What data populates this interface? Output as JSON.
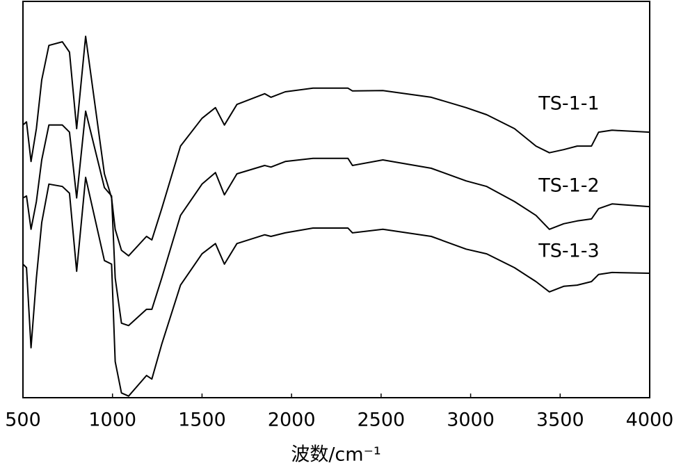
{
  "chart_data": {
    "type": "line",
    "x_label": "波数/cm⁻¹",
    "x": [
      500,
      520,
      545,
      575,
      605,
      645,
      720,
      760,
      800,
      850,
      955,
      995,
      1015,
      1050,
      1090,
      1190,
      1220,
      1275,
      1380,
      1500,
      1575,
      1625,
      1695,
      1850,
      1885,
      1965,
      2120,
      2315,
      2340,
      2510,
      2780,
      2975,
      3090,
      3245,
      3365,
      3440,
      3520,
      3595,
      3675,
      3715,
      3790,
      4000
    ],
    "series": [
      {
        "name": "TS-1-1",
        "color": "#000000",
        "values": [
          68.8,
          69.6,
          59.6,
          67.9,
          80.2,
          88.9,
          89.8,
          87.2,
          67.9,
          91.2,
          56.5,
          50.4,
          42.5,
          37.2,
          35.8,
          40.7,
          39.8,
          47.7,
          63.5,
          70.5,
          73.2,
          68.8,
          74.0,
          76.7,
          75.8,
          77.2,
          78.1,
          78.1,
          77.4,
          77.5,
          75.8,
          73.2,
          71.4,
          67.9,
          63.5,
          61.8,
          62.6,
          63.5,
          63.5,
          67.0,
          67.5,
          67.0
        ]
      },
      {
        "name": "TS-1-2",
        "color": "#000000",
        "values": [
          50.4,
          50.9,
          42.5,
          49.5,
          60.0,
          68.8,
          68.8,
          67.0,
          50.4,
          72.3,
          53.0,
          50.9,
          30.2,
          18.8,
          18.2,
          22.3,
          22.3,
          30.2,
          46.0,
          53.9,
          56.8,
          51.2,
          56.5,
          58.6,
          58.2,
          59.6,
          60.4,
          60.4,
          58.6,
          60.0,
          57.9,
          54.7,
          53.3,
          49.5,
          46.0,
          42.5,
          43.9,
          44.6,
          45.1,
          47.7,
          48.9,
          48.2
        ]
      },
      {
        "name": "TS-1-3",
        "color": "#000000",
        "values": [
          33.7,
          32.8,
          12.6,
          30.2,
          44.2,
          53.9,
          53.3,
          51.6,
          31.9,
          55.6,
          34.6,
          33.7,
          9.1,
          1.2,
          0.4,
          5.6,
          4.7,
          13.5,
          28.4,
          36.3,
          38.9,
          33.7,
          38.9,
          41.1,
          40.7,
          41.6,
          42.8,
          42.8,
          41.6,
          42.5,
          40.7,
          37.5,
          36.3,
          32.8,
          29.3,
          26.7,
          28.1,
          28.4,
          29.3,
          31.1,
          31.6,
          31.4
        ]
      }
    ],
    "xlim": [
      500,
      4000
    ],
    "xticks": [
      500,
      1000,
      1500,
      2000,
      2500,
      3000,
      3500,
      4000
    ],
    "ylim": [
      0,
      100
    ]
  }
}
